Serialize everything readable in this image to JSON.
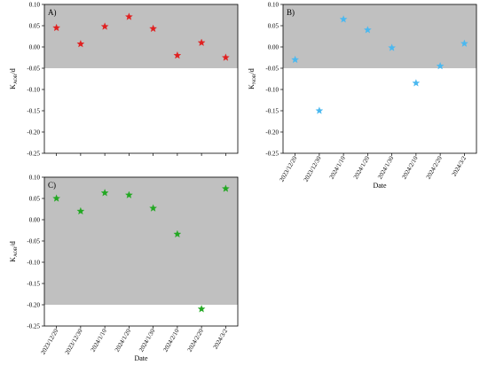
{
  "chart_data": [
    {
      "type": "scatter",
      "panel_label": "A)",
      "ylabel_main": "K",
      "ylabel_sub": "AOB",
      "ylabel_tail": "/d",
      "xlabel": "",
      "ylim": [
        -0.25,
        0.1
      ],
      "yticks": [
        "0.10",
        "0.05",
        "0.00",
        "-0.05",
        "-0.10",
        "-0.15",
        "-0.20",
        "-0.25"
      ],
      "tick_labels": [],
      "shaded_region": {
        "y_from": -0.05,
        "y_to": 0.1,
        "color": "#c0c0c0"
      },
      "marker": "star",
      "color": "#e02020",
      "x": [
        1,
        2,
        3,
        4,
        5,
        6,
        7,
        8
      ],
      "values": [
        0.045,
        0.007,
        0.048,
        0.071,
        0.043,
        -0.02,
        0.01,
        -0.025
      ]
    },
    {
      "type": "scatter",
      "panel_label": "B)",
      "ylabel_main": "K",
      "ylabel_sub": "NOB",
      "ylabel_tail": "/d",
      "xlabel": "Date",
      "ylim": [
        -0.25,
        0.1
      ],
      "yticks": [
        "0.10",
        "0.05",
        "0.00",
        "-0.05",
        "-0.10",
        "-0.15",
        "-0.20",
        "-0.25"
      ],
      "tick_labels": [
        "2023/12/20",
        "2023/12/30",
        "2024/1/10",
        "2024/1/20",
        "2024/1/30",
        "2024/2/10",
        "2024/2/20",
        "2024/3/2"
      ],
      "shaded_region": {
        "y_from": -0.05,
        "y_to": 0.1,
        "color": "#c0c0c0"
      },
      "marker": "star",
      "color": "#4ab8f0",
      "x": [
        1,
        2,
        3,
        4,
        5,
        6,
        7,
        8
      ],
      "values": [
        -0.03,
        -0.15,
        0.065,
        0.04,
        -0.002,
        -0.085,
        -0.045,
        0.008
      ]
    },
    {
      "type": "scatter",
      "panel_label": "C)",
      "ylabel_main": "K",
      "ylabel_sub": "AOB",
      "ylabel_tail": "/d",
      "xlabel": "Date",
      "ylim": [
        -0.25,
        0.1
      ],
      "yticks": [
        "0.10",
        "0.05",
        "0.00",
        "-0.05",
        "-0.10",
        "-0.15",
        "-0.20",
        "-0.25"
      ],
      "tick_labels": [
        "2023/12/20",
        "2023/12/30",
        "2024/1/10",
        "2024/1/20",
        "2024/1/30",
        "2024/2/10",
        "2024/2/20",
        "2024/3/2"
      ],
      "shaded_region": {
        "y_from": -0.2,
        "y_to": 0.1,
        "color": "#c0c0c0"
      },
      "marker": "star",
      "color": "#22a822",
      "x": [
        1,
        2,
        3,
        4,
        5,
        6,
        7,
        8
      ],
      "values": [
        0.05,
        0.02,
        0.063,
        0.058,
        0.027,
        -0.034,
        -0.21,
        0.073
      ]
    }
  ]
}
